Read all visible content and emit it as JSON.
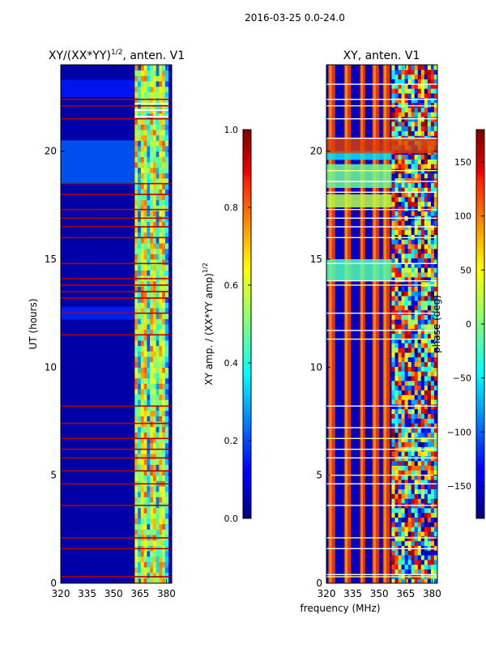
{
  "suptitle": "2016-03-25 0.0-24.0",
  "chart_data": [
    {
      "type": "heatmap",
      "title": "XY/(XX*YY)^1/2, anten. V1",
      "title_main": "XY/(XX*YY)",
      "title_sup": "1/2",
      "title_tail": ", anten. V1",
      "ylabel": "UT (hours)",
      "xlabel": "",
      "x_range": [
        320,
        383
      ],
      "y_range": [
        0,
        24
      ],
      "xticks": [
        320,
        335,
        350,
        365,
        380
      ],
      "yticks": [
        0,
        5,
        10,
        15,
        20
      ],
      "value_range": [
        0.0,
        1.0
      ],
      "colorbar": {
        "label": "XY amp. / (XX*YY amp)^1/2",
        "label_main": "XY amp. / (XX*YY amp)",
        "label_sup": "1/2",
        "ticks": [
          "0.0",
          "0.2",
          "0.4",
          "0.6",
          "0.8",
          "1.0"
        ],
        "tick_values": [
          0.0,
          0.2,
          0.4,
          0.6,
          0.8,
          1.0
        ]
      },
      "gap_bands_ut": [
        0.3,
        1.6,
        2.1,
        3.6,
        4.6,
        5.2,
        5.8,
        6.2,
        6.7,
        7.4,
        8.2,
        11.5,
        12.5,
        13.2,
        13.5,
        13.8,
        14.1,
        14.8,
        16.0,
        16.5,
        16.9,
        17.3,
        18.0,
        18.5,
        21.5,
        22.1,
        22.4
      ]
    },
    {
      "type": "heatmap",
      "title": "XY, anten. V1",
      "ylabel": "",
      "xlabel": "frequency (MHz)",
      "x_range": [
        320,
        383
      ],
      "y_range": [
        0,
        24
      ],
      "xticks": [
        320,
        335,
        350,
        365,
        380
      ],
      "yticks": [
        0,
        5,
        10,
        15,
        20
      ],
      "value_range": [
        -180,
        180
      ],
      "colorbar": {
        "label": "phase (deg)",
        "ticks": [
          "−150",
          "−100",
          "−50",
          "0",
          "50",
          "100",
          "150"
        ],
        "tick_values": [
          -150,
          -100,
          -50,
          0,
          50,
          100,
          150
        ]
      },
      "gap_bands_ut": [
        0.3,
        0.4,
        1.6,
        2.1,
        3.6,
        4.6,
        5.0,
        5.8,
        6.2,
        6.7,
        7.2,
        8.2,
        11.3,
        11.7,
        12.5,
        13.8,
        14.0,
        14.8,
        16.0,
        16.5,
        16.9,
        17.3,
        18.1,
        18.6,
        19.1,
        20.6,
        21.5,
        22.1,
        22.4,
        23.1
      ]
    }
  ]
}
